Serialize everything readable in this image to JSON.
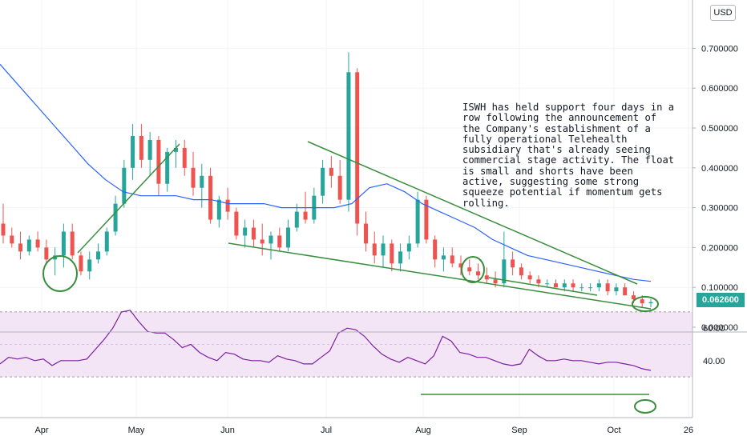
{
  "currency": "USD",
  "last_price_label": "0.062600",
  "annotation": "ISWH has held support four days in a row following the announcement of the Company's establishment of a fully operational Telehealth subsidiary that's already seeing commercial stage activity. The float is small and shorts have been active, suggesting some strong squeeze potential if momentum gets rolling.",
  "colors": {
    "up": "#26a69a",
    "down": "#ef5350",
    "ma": "#2962ff",
    "trendline": "#388e3c",
    "rsi": "#7b1fa2",
    "rsi_band": "#f3e5f5"
  },
  "chart_data": [
    {
      "type": "candlestick",
      "ylim": [
        0.0,
        0.72
      ],
      "y_ticks": [
        "0.000000",
        "0.100000",
        "0.200000",
        "0.300000",
        "0.400000",
        "0.500000",
        "0.600000",
        "0.700000"
      ],
      "x_ticks": [
        "Apr",
        "May",
        "Jun",
        "Jul",
        "Aug",
        "Sep",
        "Oct",
        "26"
      ],
      "series": [
        {
          "kind": "ohlc",
          "values": [
            [
              0.26,
              0.31,
              0.21,
              0.23
            ],
            [
              0.23,
              0.25,
              0.2,
              0.21
            ],
            [
              0.21,
              0.24,
              0.17,
              0.19
            ],
            [
              0.19,
              0.23,
              0.18,
              0.22
            ],
            [
              0.22,
              0.24,
              0.19,
              0.2
            ],
            [
              0.2,
              0.22,
              0.16,
              0.17
            ],
            [
              0.17,
              0.2,
              0.13,
              0.18
            ],
            [
              0.18,
              0.26,
              0.15,
              0.24
            ],
            [
              0.24,
              0.26,
              0.17,
              0.18
            ],
            [
              0.18,
              0.19,
              0.13,
              0.14
            ],
            [
              0.14,
              0.19,
              0.12,
              0.17
            ],
            [
              0.17,
              0.21,
              0.16,
              0.19
            ],
            [
              0.19,
              0.25,
              0.18,
              0.24
            ],
            [
              0.24,
              0.33,
              0.23,
              0.31
            ],
            [
              0.31,
              0.42,
              0.3,
              0.4
            ],
            [
              0.4,
              0.51,
              0.37,
              0.48
            ],
            [
              0.48,
              0.51,
              0.4,
              0.42
            ],
            [
              0.42,
              0.49,
              0.38,
              0.47
            ],
            [
              0.47,
              0.48,
              0.33,
              0.36
            ],
            [
              0.36,
              0.45,
              0.34,
              0.44
            ],
            [
              0.44,
              0.47,
              0.4,
              0.45
            ],
            [
              0.45,
              0.47,
              0.38,
              0.4
            ],
            [
              0.4,
              0.44,
              0.33,
              0.35
            ],
            [
              0.35,
              0.41,
              0.3,
              0.38
            ],
            [
              0.38,
              0.4,
              0.26,
              0.27
            ],
            [
              0.27,
              0.33,
              0.25,
              0.32
            ],
            [
              0.32,
              0.35,
              0.27,
              0.29
            ],
            [
              0.29,
              0.3,
              0.22,
              0.23
            ],
            [
              0.23,
              0.27,
              0.2,
              0.25
            ],
            [
              0.25,
              0.27,
              0.2,
              0.22
            ],
            [
              0.22,
              0.26,
              0.18,
              0.21
            ],
            [
              0.21,
              0.24,
              0.17,
              0.23
            ],
            [
              0.23,
              0.25,
              0.19,
              0.2
            ],
            [
              0.2,
              0.27,
              0.19,
              0.25
            ],
            [
              0.25,
              0.31,
              0.24,
              0.29
            ],
            [
              0.29,
              0.34,
              0.26,
              0.27
            ],
            [
              0.27,
              0.35,
              0.26,
              0.33
            ],
            [
              0.33,
              0.42,
              0.31,
              0.4
            ],
            [
              0.4,
              0.43,
              0.35,
              0.38
            ],
            [
              0.38,
              0.42,
              0.31,
              0.32
            ],
            [
              0.32,
              0.69,
              0.29,
              0.64
            ],
            [
              0.64,
              0.65,
              0.23,
              0.26
            ],
            [
              0.26,
              0.29,
              0.19,
              0.21
            ],
            [
              0.21,
              0.24,
              0.16,
              0.18
            ],
            [
              0.18,
              0.23,
              0.15,
              0.21
            ],
            [
              0.21,
              0.22,
              0.14,
              0.16
            ],
            [
              0.16,
              0.21,
              0.14,
              0.19
            ],
            [
              0.19,
              0.23,
              0.17,
              0.21
            ],
            [
              0.21,
              0.34,
              0.2,
              0.32
            ],
            [
              0.32,
              0.33,
              0.21,
              0.22
            ],
            [
              0.22,
              0.23,
              0.15,
              0.17
            ],
            [
              0.17,
              0.2,
              0.14,
              0.18
            ],
            [
              0.18,
              0.2,
              0.15,
              0.16
            ],
            [
              0.16,
              0.18,
              0.13,
              0.15
            ],
            [
              0.15,
              0.17,
              0.13,
              0.14
            ],
            [
              0.14,
              0.16,
              0.12,
              0.13
            ],
            [
              0.13,
              0.15,
              0.11,
              0.12
            ],
            [
              0.12,
              0.14,
              0.1,
              0.11
            ],
            [
              0.11,
              0.24,
              0.1,
              0.17
            ],
            [
              0.17,
              0.19,
              0.13,
              0.15
            ],
            [
              0.15,
              0.16,
              0.12,
              0.13
            ],
            [
              0.13,
              0.14,
              0.11,
              0.12
            ],
            [
              0.12,
              0.13,
              0.1,
              0.11
            ],
            [
              0.11,
              0.12,
              0.1,
              0.11
            ],
            [
              0.11,
              0.12,
              0.1,
              0.1
            ],
            [
              0.1,
              0.12,
              0.09,
              0.11
            ],
            [
              0.11,
              0.12,
              0.09,
              0.1
            ],
            [
              0.1,
              0.11,
              0.09,
              0.1
            ],
            [
              0.1,
              0.11,
              0.09,
              0.1
            ],
            [
              0.1,
              0.12,
              0.09,
              0.11
            ],
            [
              0.11,
              0.12,
              0.08,
              0.09
            ],
            [
              0.09,
              0.11,
              0.08,
              0.1
            ],
            [
              0.1,
              0.11,
              0.08,
              0.08
            ],
            [
              0.08,
              0.09,
              0.06,
              0.07
            ],
            [
              0.07,
              0.08,
              0.05,
              0.06
            ],
            [
              0.06,
              0.07,
              0.05,
              0.063
            ]
          ]
        },
        {
          "kind": "moving_average",
          "values": [
            0.66,
            0.61,
            0.56,
            0.51,
            0.46,
            0.41,
            0.37,
            0.34,
            0.33,
            0.33,
            0.33,
            0.32,
            0.32,
            0.31,
            0.31,
            0.31,
            0.3,
            0.3,
            0.3,
            0.3,
            0.31,
            0.35,
            0.36,
            0.34,
            0.31,
            0.29,
            0.27,
            0.25,
            0.22,
            0.2,
            0.18,
            0.17,
            0.16,
            0.15,
            0.14,
            0.13,
            0.12,
            0.115
          ]
        }
      ]
    },
    {
      "type": "line",
      "ylim": [
        25,
        73
      ],
      "y_ticks": [
        "40.00",
        "60.00"
      ],
      "series": [
        {
          "name": "",
          "values": [
            38,
            42,
            41,
            42,
            40,
            41,
            37,
            40,
            40,
            40,
            41,
            47,
            53,
            60,
            70,
            71,
            64,
            58,
            57,
            57,
            53,
            48,
            50,
            45,
            42,
            40,
            45,
            44,
            41,
            40,
            40,
            39,
            43,
            41,
            40,
            38,
            38,
            42,
            46,
            57,
            60,
            59,
            55,
            49,
            44,
            41,
            39,
            42,
            40,
            38,
            43,
            55,
            52,
            45,
            44,
            42,
            42,
            40,
            38,
            37,
            38,
            47,
            43,
            40,
            40,
            41,
            40,
            40,
            39,
            38,
            39,
            39,
            38,
            37,
            35,
            34
          ]
        }
      ]
    }
  ]
}
